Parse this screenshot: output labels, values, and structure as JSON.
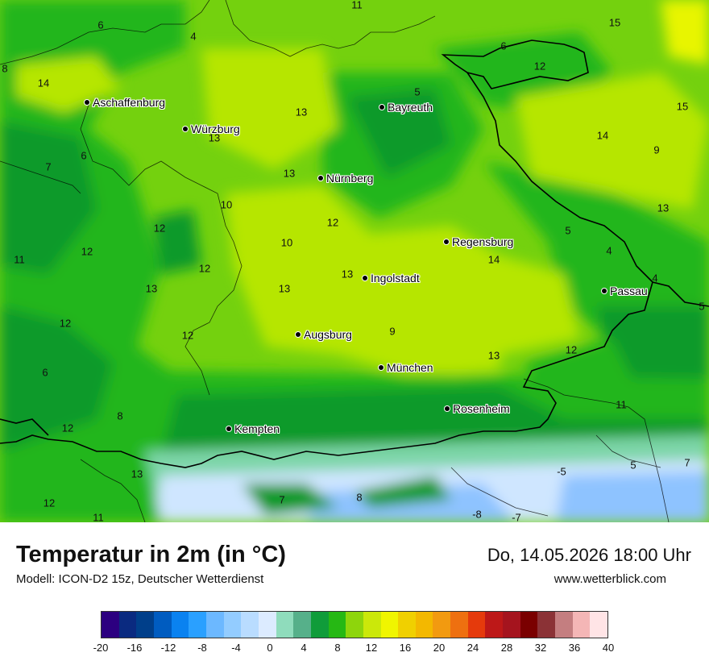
{
  "map": {
    "cities": [
      {
        "name": "Aschaffenburg"
      },
      {
        "name": "Würzburg"
      },
      {
        "name": "Bayreuth"
      },
      {
        "name": "Nürnberg"
      },
      {
        "name": "Regensburg"
      },
      {
        "name": "Ingolstadt"
      },
      {
        "name": "Passau"
      },
      {
        "name": "Augsburg"
      },
      {
        "name": "München"
      },
      {
        "name": "Rosenheim"
      },
      {
        "name": "Kempten"
      }
    ],
    "values": [
      "11",
      "6",
      "4",
      "15",
      "6",
      "12",
      "8",
      "14",
      "5",
      "13",
      "15",
      "14",
      "13",
      "9",
      "6",
      "7",
      "13",
      "10",
      "13",
      "12",
      "5",
      "10",
      "12",
      "12",
      "14",
      "11",
      "12",
      "13",
      "13",
      "13",
      "4",
      "4",
      "5",
      "12",
      "9",
      "12",
      "13",
      "12",
      "6",
      "8",
      "12",
      "11",
      "12",
      "13",
      "-5",
      "5",
      "7",
      "7",
      "8",
      "-8",
      "-7",
      "11",
      "13",
      "12"
    ],
    "colors": {
      "deep_green": "#0a9a2a",
      "green": "#22b61e",
      "light_green": "#74d10e",
      "yellow_green": "#b6e604",
      "yellow": "#e8f500",
      "mint": "#7dd6a8",
      "pale_blue": "#cfe6ff",
      "blue": "#8ec3ff"
    }
  },
  "footer": {
    "title": "Temperatur in 2m (in °C)",
    "model": "Modell: ICON-D2 15z, Deutscher Wetterdienst",
    "datetime": "Do, 14.05.2026 18:00 Uhr",
    "site": "www.wetterblick.com"
  },
  "legend": {
    "colors": [
      "#2c0080",
      "#0a2a80",
      "#003f8a",
      "#005cc0",
      "#0a82f0",
      "#2aa0ff",
      "#6cb8ff",
      "#93ccff",
      "#b9dcff",
      "#dcebff",
      "#8fdcbc",
      "#56b08a",
      "#109c3a",
      "#26b814",
      "#8ed50c",
      "#cbe80a",
      "#f0f500",
      "#f0d000",
      "#f3b800",
      "#f29a10",
      "#ee7010",
      "#e53a0c",
      "#bd1818",
      "#a5141e",
      "#7a0000",
      "#8b3236",
      "#c47e80",
      "#f4b6b6",
      "#ffe4e6"
    ],
    "ticks": [
      "-20",
      "-16",
      "-12",
      "-8",
      "-4",
      "0",
      "4",
      "8",
      "12",
      "16",
      "20",
      "24",
      "28",
      "32",
      "36",
      "40"
    ]
  }
}
